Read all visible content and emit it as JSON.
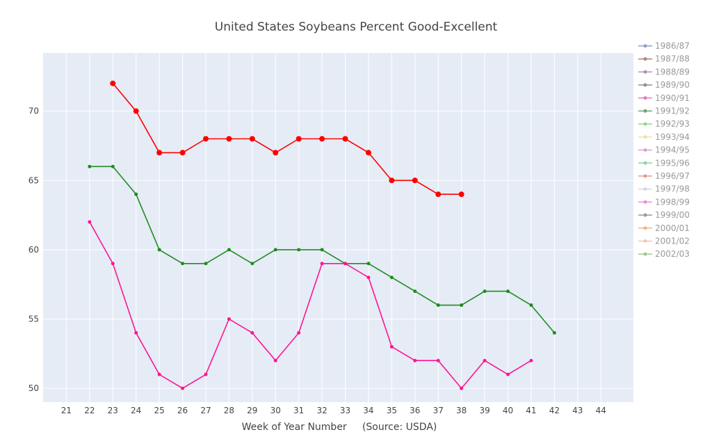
{
  "chart_data": {
    "type": "line",
    "title": "United States Soybeans Percent Good-Excellent",
    "xlabel": "Week of Year Number     (Source: USDA)",
    "ylabel": "",
    "xlim": [
      20,
      45.4
    ],
    "ylim": [
      49,
      74.2
    ],
    "xticks": [
      21,
      22,
      23,
      24,
      25,
      26,
      27,
      28,
      29,
      30,
      31,
      32,
      33,
      34,
      35,
      36,
      37,
      38,
      39,
      40,
      41,
      42,
      43,
      44
    ],
    "yticks": [
      50,
      55,
      60,
      65,
      70
    ],
    "grid": true,
    "legend_position": "right",
    "legend": [
      {
        "name": "1986/87",
        "color": "#8ea2c7"
      },
      {
        "name": "1987/88",
        "color": "#b08575"
      },
      {
        "name": "1988/89",
        "color": "#b88eb8"
      },
      {
        "name": "1989/90",
        "color": "#8f8f8f"
      },
      {
        "name": "1990/91",
        "color": "#e37cb6"
      },
      {
        "name": "1991/92",
        "color": "#6aa47a"
      },
      {
        "name": "1992/93",
        "color": "#8ed88e"
      },
      {
        "name": "1993/94",
        "color": "#f5ddb0"
      },
      {
        "name": "1994/95",
        "color": "#d9a3d9"
      },
      {
        "name": "1995/96",
        "color": "#90d4a4"
      },
      {
        "name": "1996/97",
        "color": "#e39b90"
      },
      {
        "name": "1997/98",
        "color": "#d8d5e8"
      },
      {
        "name": "1998/99",
        "color": "#e88ed2"
      },
      {
        "name": "1999/00",
        "color": "#9a9a9a"
      },
      {
        "name": "2000/01",
        "color": "#f0b48a"
      },
      {
        "name": "2001/02",
        "color": "#f0c8b8"
      },
      {
        "name": "2002/03",
        "color": "#a6c490"
      }
    ],
    "series": [
      {
        "color": "#ff0000",
        "marker_size": 6,
        "x": [
          23,
          24,
          25,
          26,
          27,
          28,
          29,
          30,
          31,
          32,
          33,
          34,
          35,
          36,
          37,
          38
        ],
        "y": [
          72,
          70,
          67,
          67,
          68,
          68,
          68,
          67,
          68,
          68,
          68,
          67,
          65,
          65,
          64,
          64
        ]
      },
      {
        "color": "#228b22",
        "marker_size": 4,
        "x": [
          22,
          23,
          24,
          25,
          26,
          27,
          28,
          29,
          30,
          31,
          32,
          33,
          34,
          35,
          36,
          37,
          38,
          39,
          40,
          41,
          42
        ],
        "y": [
          66,
          66,
          64,
          60,
          59,
          59,
          60,
          59,
          60,
          60,
          60,
          59,
          59,
          58,
          57,
          56,
          56,
          57,
          57,
          56,
          54
        ]
      },
      {
        "color": "#ff1493",
        "marker_size": 4,
        "x": [
          22,
          23,
          24,
          25,
          26,
          27,
          28,
          29,
          30,
          31,
          32,
          33,
          34,
          35,
          36,
          37,
          38,
          39,
          40,
          41
        ],
        "y": [
          62,
          59,
          54,
          51,
          50,
          51,
          55,
          54,
          52,
          54,
          59,
          59,
          58,
          53,
          52,
          52,
          50,
          52,
          51,
          52
        ]
      }
    ]
  }
}
